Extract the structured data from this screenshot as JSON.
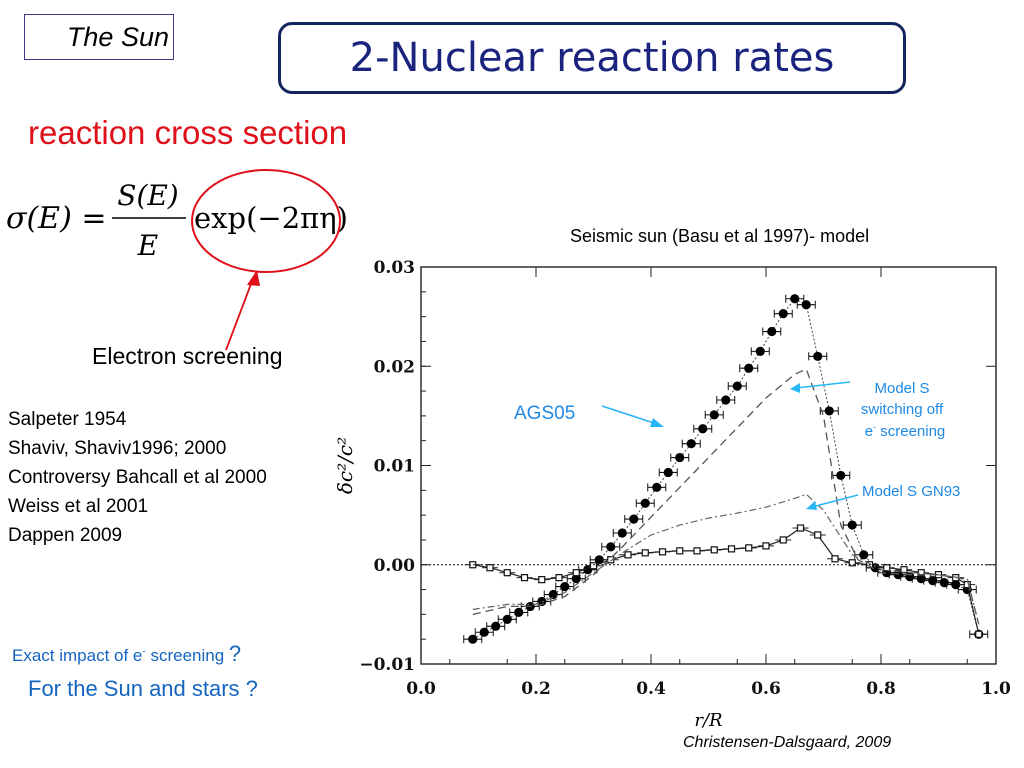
{
  "header": {
    "section_tag": "The Sun",
    "title": "2-Nuclear reaction rates"
  },
  "main": {
    "subtitle": "reaction cross section",
    "formula": {
      "lhs": "σ(E) =",
      "numerator": "S(E)",
      "denominator": "E",
      "factor": "exp(−2πη)"
    },
    "screening_label": "Electron screening",
    "references": [
      "Salpeter 1954",
      "Shaviv, Shaviv1996; 2000",
      "Controversy Bahcall et al 2000",
      "Weiss et al 2001",
      "Dappen 2009"
    ],
    "question_1_prefix": "Exact impact of e",
    "question_1_sup": "-",
    "question_1_suffix": " screening",
    "question_1_mark": "?",
    "question_2": "For the Sun and stars ?",
    "credit": "Christensen-Dalsgaard, 2009"
  },
  "colors": {
    "title_text": "#1a237e",
    "title_border": "#14245e",
    "subtitle": "#e0101a",
    "annotation": "#1e88e5",
    "circle": "#e0101a"
  },
  "chart_data": {
    "type": "scatter",
    "title": "Seismic sun (Basu et al 1997)- model",
    "xlabel": "r/R",
    "ylabel": "δc²/c²",
    "xlim": [
      0.0,
      1.0
    ],
    "ylim": [
      -0.01,
      0.03
    ],
    "x_ticks": [
      "0.0",
      "0.2",
      "0.4",
      "0.6",
      "0.8",
      "1.0"
    ],
    "y_ticks": [
      "−0.01",
      "0.00",
      "0.01",
      "0.02",
      "0.03"
    ],
    "zero_line": true,
    "annotations": {
      "ags05": "AGS05",
      "model_s_switch_1": "Model S",
      "model_s_switch_2": "switching off",
      "model_s_switch_3": "e",
      "model_s_switch_3_sup": "-",
      "model_s_switch_3b": " screening",
      "model_s_gn93": "Model S GN93"
    },
    "series": [
      {
        "name": "AGS05",
        "style": "filled-circles",
        "x": [
          0.09,
          0.11,
          0.13,
          0.15,
          0.17,
          0.19,
          0.21,
          0.23,
          0.25,
          0.27,
          0.29,
          0.31,
          0.33,
          0.35,
          0.37,
          0.39,
          0.41,
          0.43,
          0.45,
          0.47,
          0.49,
          0.51,
          0.53,
          0.55,
          0.57,
          0.59,
          0.61,
          0.63,
          0.65,
          0.67,
          0.69,
          0.71,
          0.73,
          0.75,
          0.77,
          0.79,
          0.81,
          0.83,
          0.85,
          0.87,
          0.89,
          0.91,
          0.93,
          0.95,
          0.97
        ],
        "y": [
          -0.0075,
          -0.0068,
          -0.0062,
          -0.0055,
          -0.0048,
          -0.0042,
          -0.0037,
          -0.003,
          -0.0022,
          -0.0014,
          -0.0005,
          0.0005,
          0.0018,
          0.0032,
          0.0046,
          0.0062,
          0.0078,
          0.0093,
          0.0108,
          0.0122,
          0.0137,
          0.0151,
          0.0166,
          0.018,
          0.0198,
          0.0215,
          0.0235,
          0.0253,
          0.0268,
          0.0262,
          0.021,
          0.0155,
          0.009,
          0.004,
          0.001,
          -0.0003,
          -0.0008,
          -0.001,
          -0.0012,
          -0.0014,
          -0.0016,
          -0.0018,
          -0.002,
          -0.0025,
          -0.007
        ]
      },
      {
        "name": "Model S GN93",
        "style": "open-squares",
        "x": [
          0.09,
          0.12,
          0.15,
          0.18,
          0.21,
          0.24,
          0.27,
          0.3,
          0.33,
          0.36,
          0.39,
          0.42,
          0.45,
          0.48,
          0.51,
          0.54,
          0.57,
          0.6,
          0.63,
          0.66,
          0.69,
          0.72,
          0.75,
          0.78,
          0.81,
          0.84,
          0.87,
          0.9,
          0.93,
          0.95,
          0.97
        ],
        "y": [
          0.0,
          -0.0003,
          -0.0008,
          -0.0013,
          -0.0015,
          -0.0013,
          -0.0008,
          -0.0001,
          0.0005,
          0.001,
          0.0012,
          0.0013,
          0.0014,
          0.0014,
          0.0015,
          0.0016,
          0.0017,
          0.0019,
          0.0025,
          0.0037,
          0.003,
          0.0006,
          0.0002,
          0.0,
          -0.0003,
          -0.0005,
          -0.0008,
          -0.001,
          -0.0013,
          -0.002,
          -0.007
        ]
      },
      {
        "name": "Model S switching off e- screening",
        "style": "dashed",
        "x": [
          0.09,
          0.15,
          0.2,
          0.25,
          0.3,
          0.35,
          0.4,
          0.45,
          0.5,
          0.55,
          0.6,
          0.65,
          0.67,
          0.7,
          0.73,
          0.76,
          0.8,
          0.85,
          0.9,
          0.95,
          0.97
        ],
        "y": [
          -0.005,
          -0.0042,
          -0.0042,
          -0.0032,
          -0.001,
          0.0018,
          0.0048,
          0.0078,
          0.0108,
          0.0138,
          0.0168,
          0.0192,
          0.0197,
          0.015,
          0.004,
          0.0005,
          -0.0008,
          -0.001,
          -0.001,
          -0.0015,
          -0.006
        ]
      },
      {
        "name": "Model S GN93 (dash-dot)",
        "style": "dashdot",
        "x": [
          0.09,
          0.15,
          0.2,
          0.25,
          0.3,
          0.35,
          0.4,
          0.45,
          0.5,
          0.55,
          0.6,
          0.65,
          0.67,
          0.7,
          0.75,
          0.8,
          0.85,
          0.9,
          0.95,
          0.97
        ],
        "y": [
          -0.0045,
          -0.004,
          -0.004,
          -0.0028,
          -0.0008,
          0.0012,
          0.003,
          0.004,
          0.0047,
          0.0052,
          0.0058,
          0.0067,
          0.0071,
          0.0055,
          0.001,
          -0.0005,
          -0.0008,
          -0.001,
          -0.0014,
          -0.006
        ]
      }
    ]
  }
}
